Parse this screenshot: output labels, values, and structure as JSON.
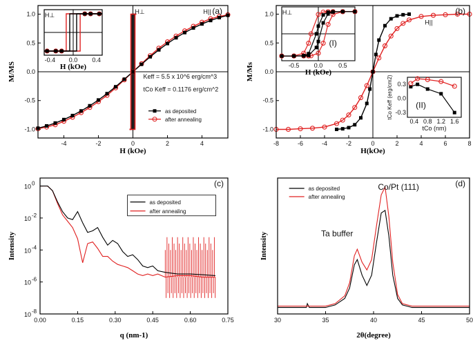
{
  "chart_data": [
    {
      "panel": "(a)",
      "type": "line",
      "xlabel": "H (kOe)",
      "ylabel": "M/MS",
      "xlim": [
        -5.5,
        5.5
      ],
      "ylim": [
        -1.15,
        1.15
      ],
      "xticks": [
        "-4",
        "-2",
        "0",
        "2",
        "4"
      ],
      "yticks": [
        "-1.0",
        "-0.5",
        "0.0",
        "0.5",
        "1.0"
      ],
      "labels": {
        "h_perp": "H⊥",
        "h_par": "H||"
      },
      "annotations": [
        "Keff = 5.5 x 10^6 erg/cm^3",
        "tCo Keff = 0.1176 erg/cm^2"
      ],
      "legend": [
        "as deposited",
        "after annealing"
      ],
      "series": [
        {
          "name": "after annealing (H||)",
          "color": "#e02020",
          "x": [
            -5.5,
            -5,
            -4.5,
            -4,
            -3.5,
            -3,
            -2.5,
            -2,
            -1.5,
            -1,
            -0.5,
            0,
            0.5,
            1,
            1.5,
            2,
            2.5,
            3,
            3.5,
            4,
            4.5,
            5,
            5.5
          ],
          "y": [
            -0.99,
            -0.96,
            -0.92,
            -0.86,
            -0.79,
            -0.71,
            -0.62,
            -0.52,
            -0.41,
            -0.28,
            -0.14,
            0,
            0.14,
            0.28,
            0.41,
            0.52,
            0.62,
            0.71,
            0.79,
            0.86,
            0.92,
            0.96,
            0.99
          ]
        },
        {
          "name": "as deposited (H||)",
          "color": "#000000",
          "x": [
            -5.5,
            -5,
            -4.5,
            -4,
            -3.5,
            -3,
            -2.5,
            -2,
            -1.5,
            -1,
            -0.5,
            0,
            0.5,
            1,
            1.5,
            2,
            2.5,
            3,
            3.5,
            4,
            4.5,
            5,
            5.5
          ],
          "y": [
            -0.98,
            -0.94,
            -0.89,
            -0.83,
            -0.76,
            -0.68,
            -0.59,
            -0.49,
            -0.38,
            -0.26,
            -0.13,
            0,
            0.13,
            0.26,
            0.38,
            0.49,
            0.59,
            0.68,
            0.76,
            0.83,
            0.89,
            0.94,
            0.98
          ]
        }
      ],
      "inset": {
        "xlabel": "H (kOe)",
        "xlim": [
          -0.5,
          0.5
        ],
        "xticks": [
          "-0.4",
          "0.0",
          "0.4"
        ],
        "label": "H⊥",
        "coercivity_kOe": {
          "as_deposited": 0.06,
          "after_annealing": 0.12
        }
      }
    },
    {
      "panel": "(b)",
      "type": "line",
      "xlabel": "H(kOe)",
      "ylabel": "M/Ms",
      "xlim": [
        -8,
        8
      ],
      "ylim": [
        -1.15,
        1.15
      ],
      "xticks": [
        "-8",
        "-6",
        "-4",
        "-2",
        "0",
        "2",
        "4",
        "6",
        "8"
      ],
      "yticks": [
        "-1.0",
        "-0.5",
        "0.0",
        "0.5",
        "1.0"
      ],
      "labels": {
        "h_par": "H||"
      },
      "series": [
        {
          "name": "after annealing (H||)",
          "color": "#e02020",
          "x": [
            -8,
            -7,
            -6,
            -5,
            -4,
            -3,
            -2.5,
            -2,
            -1.5,
            -1,
            -0.5,
            0,
            0.5,
            1,
            1.5,
            2,
            2.5,
            3,
            4,
            5,
            6,
            7,
            8
          ],
          "y": [
            -1,
            -1,
            -0.99,
            -0.98,
            -0.96,
            -0.9,
            -0.84,
            -0.75,
            -0.62,
            -0.45,
            -0.24,
            0,
            0.24,
            0.45,
            0.62,
            0.75,
            0.84,
            0.9,
            0.96,
            0.98,
            0.99,
            1,
            1
          ]
        },
        {
          "name": "as deposited (H||)",
          "color": "#000000",
          "x": [
            -3,
            -2.5,
            -2,
            -1.5,
            -1,
            -0.5,
            -0.25,
            0,
            0.25,
            0.5,
            1,
            1.5,
            2,
            2.5,
            3
          ],
          "y": [
            -1,
            -0.99,
            -0.97,
            -0.92,
            -0.8,
            -0.55,
            -0.3,
            0,
            0.3,
            0.55,
            0.8,
            0.92,
            0.97,
            0.99,
            1
          ]
        }
      ],
      "inset1": {
        "label": "(I)",
        "h_label": "H⊥",
        "xlabel": "H (kOe)",
        "xlim": [
          -0.75,
          0.75
        ],
        "xticks": [
          "-0.5",
          "0.0",
          "0.5"
        ]
      },
      "inset2": {
        "label": "(II)",
        "xlabel": "tCo (nm)",
        "ylabel": "tCo Keff (erg/cm2)",
        "xlim": [
          0.2,
          1.8
        ],
        "ylim": [
          -0.4,
          0.45
        ],
        "xticks": [
          "0.4",
          "0.8",
          "1.2",
          "1.6"
        ],
        "yticks": [
          "-0.3",
          "0.0",
          "0.3"
        ],
        "series": [
          {
            "name": "as deposited",
            "color": "#000000",
            "x": [
              0.3,
              0.5,
              0.8,
              1.2,
              1.6
            ],
            "y": [
              0.25,
              0.3,
              0.2,
              0.1,
              -0.3
            ]
          },
          {
            "name": "after annealing",
            "color": "#e02020",
            "x": [
              0.3,
              0.5,
              0.8,
              1.2,
              1.6
            ],
            "y": [
              0.32,
              0.42,
              0.4,
              0.36,
              0.26
            ]
          }
        ]
      }
    },
    {
      "panel": "(c)",
      "type": "line",
      "xlabel": "q (nm-1)",
      "ylabel": "Intensity",
      "xlim": [
        0,
        0.75
      ],
      "ylim_log10": [
        -8,
        0.5
      ],
      "xticks": [
        "0.00",
        "0.15",
        "0.30",
        "0.45",
        "0.60",
        "0.75"
      ],
      "yticks": [
        "10",
        "10",
        "10",
        "10",
        "10"
      ],
      "ytick_exponents": [
        "0",
        "-2",
        "-4",
        "-6",
        "-8"
      ],
      "legend": [
        "as deposited",
        "after annealing"
      ],
      "series": [
        {
          "name": "as deposited",
          "color": "#000000",
          "x": [
            0,
            0.03,
            0.05,
            0.07,
            0.09,
            0.11,
            0.13,
            0.15,
            0.17,
            0.19,
            0.21,
            0.23,
            0.25,
            0.27,
            0.29,
            0.31,
            0.33,
            0.35,
            0.37,
            0.39,
            0.41,
            0.43,
            0.45,
            0.47,
            0.5,
            0.55,
            0.6,
            0.65,
            0.7
          ],
          "log10_y": [
            0,
            0,
            -0.3,
            -1.0,
            -1.6,
            -2.0,
            -2.1,
            -1.6,
            -2.3,
            -2.9,
            -2.8,
            -2.6,
            -3.2,
            -3.7,
            -3.4,
            -3.6,
            -4.1,
            -4.4,
            -4.3,
            -4.6,
            -5.0,
            -5.1,
            -5.0,
            -5.3,
            -5.4,
            -5.5,
            -5.5,
            -5.55,
            -5.6
          ]
        },
        {
          "name": "after annealing",
          "color": "#e02020",
          "x": [
            0,
            0.03,
            0.05,
            0.07,
            0.09,
            0.11,
            0.13,
            0.15,
            0.17,
            0.19,
            0.21,
            0.23,
            0.25,
            0.27,
            0.29,
            0.31,
            0.33,
            0.35,
            0.37,
            0.39,
            0.41,
            0.43,
            0.45,
            0.47,
            0.5,
            0.55,
            0.6,
            0.65,
            0.7
          ],
          "log10_y": [
            0,
            0,
            -0.3,
            -1.1,
            -1.8,
            -2.2,
            -2.6,
            -3.3,
            -4.8,
            -3.6,
            -3.5,
            -3.9,
            -4.4,
            -4.4,
            -4.7,
            -4.9,
            -5.0,
            -5.1,
            -5.3,
            -5.5,
            -5.6,
            -5.5,
            -5.6,
            -5.5,
            -5.7,
            -5.6,
            -5.6,
            -5.7,
            -5.7
          ]
        }
      ]
    },
    {
      "panel": "(d)",
      "type": "line",
      "xlabel": "2θ(degree)",
      "ylabel": "Intensity",
      "xlim": [
        30,
        50
      ],
      "xticks": [
        "30",
        "35",
        "40",
        "45",
        "50"
      ],
      "annotations": [
        "Co/Pt (111)",
        "Ta buffer"
      ],
      "legend": [
        "as deposited",
        "after annealing"
      ],
      "series": [
        {
          "name": "as deposited",
          "color": "#000000",
          "x": [
            30,
            32,
            33,
            33.1,
            33.3,
            34,
            35,
            36,
            37,
            37.5,
            38,
            38.3,
            38.8,
            39.3,
            39.8,
            40.3,
            40.8,
            41.2,
            41.6,
            42,
            42.5,
            43,
            44,
            46,
            50
          ],
          "y": [
            0.05,
            0.05,
            0.05,
            0.08,
            0.05,
            0.05,
            0.05,
            0.07,
            0.12,
            0.2,
            0.38,
            0.42,
            0.3,
            0.22,
            0.3,
            0.55,
            0.78,
            0.8,
            0.6,
            0.3,
            0.12,
            0.07,
            0.05,
            0.05,
            0.05
          ]
        },
        {
          "name": "after annealing",
          "color": "#e02020",
          "x": [
            30,
            32,
            34,
            35,
            36,
            37,
            37.5,
            38,
            38.3,
            38.8,
            39.3,
            39.8,
            40.3,
            40.8,
            41.2,
            41.6,
            42,
            42.5,
            43,
            44,
            46,
            50
          ],
          "y": [
            0.06,
            0.06,
            0.06,
            0.06,
            0.08,
            0.14,
            0.24,
            0.45,
            0.5,
            0.4,
            0.34,
            0.42,
            0.68,
            0.92,
            0.98,
            0.75,
            0.4,
            0.15,
            0.08,
            0.06,
            0.06,
            0.06
          ]
        }
      ]
    }
  ]
}
